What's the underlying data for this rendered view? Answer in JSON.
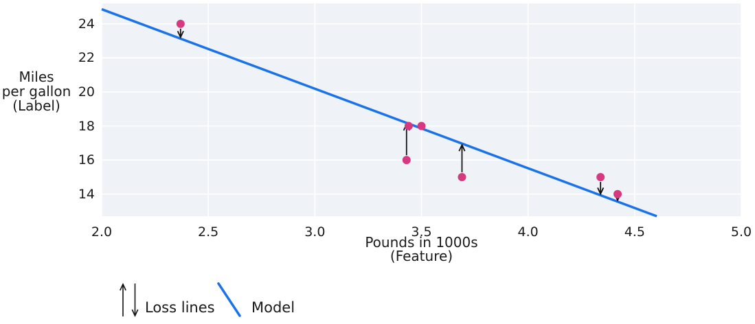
{
  "chart_data": {
    "type": "scatter",
    "title": "",
    "xlabel": "Pounds in 1000s\n(Feature)",
    "ylabel": "Miles\nper gallon\n(Label)",
    "xlim": [
      2.0,
      5.0
    ],
    "ylim": [
      12.7,
      25.2
    ],
    "xticks": [
      2.0,
      2.5,
      3.0,
      3.5,
      4.0,
      4.5,
      5.0
    ],
    "xtick_labels": [
      "2.0",
      "2.5",
      "3.0",
      "3.5",
      "4.0",
      "4.5",
      "5.0"
    ],
    "yticks": [
      14,
      16,
      18,
      20,
      22,
      24
    ],
    "ytick_labels": [
      "14",
      "16",
      "18",
      "20",
      "22",
      "24"
    ],
    "grid": true,
    "points": [
      {
        "x": 2.37,
        "y": 24
      },
      {
        "x": 3.43,
        "y": 16
      },
      {
        "x": 3.44,
        "y": 18
      },
      {
        "x": 3.5,
        "y": 18
      },
      {
        "x": 3.69,
        "y": 15
      },
      {
        "x": 4.34,
        "y": 15
      },
      {
        "x": 4.42,
        "y": 14
      }
    ],
    "model_line": {
      "slope": -4.67,
      "intercept": 34.2
    },
    "loss_arrows": "vertical arrows drawn from each data point to the model line",
    "legend": {
      "position": "bottom-left",
      "entries": [
        {
          "label": "Loss lines",
          "symbol": "up-down-arrows"
        },
        {
          "label": "Model",
          "symbol": "blue-line"
        }
      ]
    },
    "colors": {
      "point": "#d6397f",
      "model_line": "#1a73e8",
      "plot_background": "#eff2f7",
      "gridline": "#ffffff",
      "arrow": "#111111",
      "text": "#1a1a1a"
    }
  }
}
